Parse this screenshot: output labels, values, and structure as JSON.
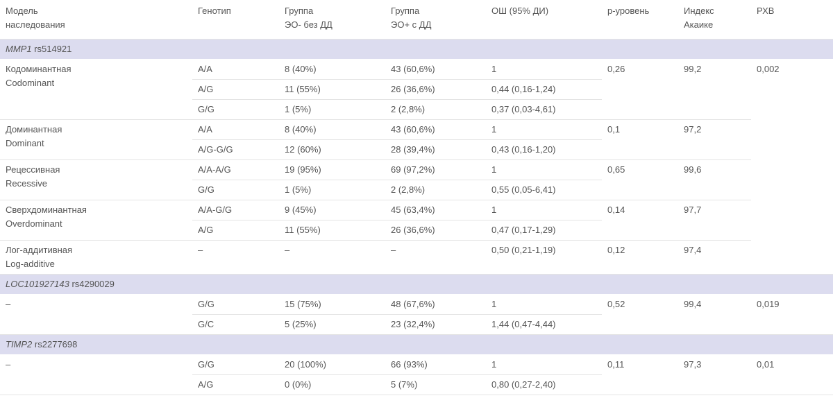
{
  "header": [
    "Модель\nнаследования",
    "Генотип",
    "Группа\nЭО- без ДД",
    "Группа\nЭО+ с ДД",
    "ОШ (95% ДИ)",
    "p-уровень",
    "Индекс\nАкаике",
    "РХВ"
  ],
  "sections": [
    {
      "gene": "MMP1",
      "snp": "rs514921",
      "rxv": "0,002",
      "models": [
        {
          "name": "Кодоминантная\nCodominant",
          "p": "0,26",
          "aic": "99,2",
          "rows": [
            [
              "A/A",
              "8 (40%)",
              "43 (60,6%)",
              "1"
            ],
            [
              "A/G",
              "11 (55%)",
              "26 (36,6%)",
              "0,44 (0,16-1,24)"
            ],
            [
              "G/G",
              "1 (5%)",
              "2 (2,8%)",
              "0,37 (0,03-4,61)"
            ]
          ]
        },
        {
          "name": "Доминантная\nDominant",
          "p": "0,1",
          "aic": "97,2",
          "rows": [
            [
              "A/A",
              "8 (40%)",
              "43 (60,6%)",
              "1"
            ],
            [
              "A/G-G/G",
              "12 (60%)",
              "28 (39,4%)",
              "0,43 (0,16-1,20)"
            ]
          ]
        },
        {
          "name": "Рецессивная\nRecessive",
          "p": "0,65",
          "aic": "99,6",
          "rows": [
            [
              "A/A-A/G",
              "19 (95%)",
              "69 (97,2%)",
              "1"
            ],
            [
              "G/G",
              "1 (5%)",
              "2 (2,8%)",
              "0,55 (0,05-6,41)"
            ]
          ]
        },
        {
          "name": "Сверхдоминантная\nOverdominant",
          "p": "0,14",
          "aic": "97,7",
          "rows": [
            [
              "A/A-G/G",
              "9 (45%)",
              "45 (63,4%)",
              "1"
            ],
            [
              "A/G",
              "11 (55%)",
              "26 (36,6%)",
              "0,47 (0,17-1,29)"
            ]
          ]
        },
        {
          "name": "Лог-аддитивная\nLog-additive",
          "p": "0,12",
          "aic": "97,4",
          "rows": [
            [
              "–",
              "–",
              "–",
              "0,50 (0,21-1,19)"
            ]
          ]
        }
      ]
    },
    {
      "gene": "LOC101927143",
      "snp": "rs4290029",
      "rxv": "0,019",
      "models": [
        {
          "name": "–",
          "p": "0,52",
          "aic": "99,4",
          "rows": [
            [
              "G/G",
              "15 (75%)",
              "48 (67,6%)",
              "1"
            ],
            [
              "G/C",
              "5 (25%)",
              "23 (32,4%)",
              "1,44 (0,47-4,44)"
            ]
          ]
        }
      ]
    },
    {
      "gene": "TIMP2",
      "snp": "rs2277698",
      "rxv": "0,01",
      "models": [
        {
          "name": "–",
          "p": "0,11",
          "aic": "97,3",
          "rows": [
            [
              "G/G",
              "20 (100%)",
              "66 (93%)",
              "1"
            ],
            [
              "A/G",
              "0 (0%)",
              "5 (7%)",
              "0,80 (0,27-2,40)"
            ]
          ]
        }
      ]
    }
  ]
}
